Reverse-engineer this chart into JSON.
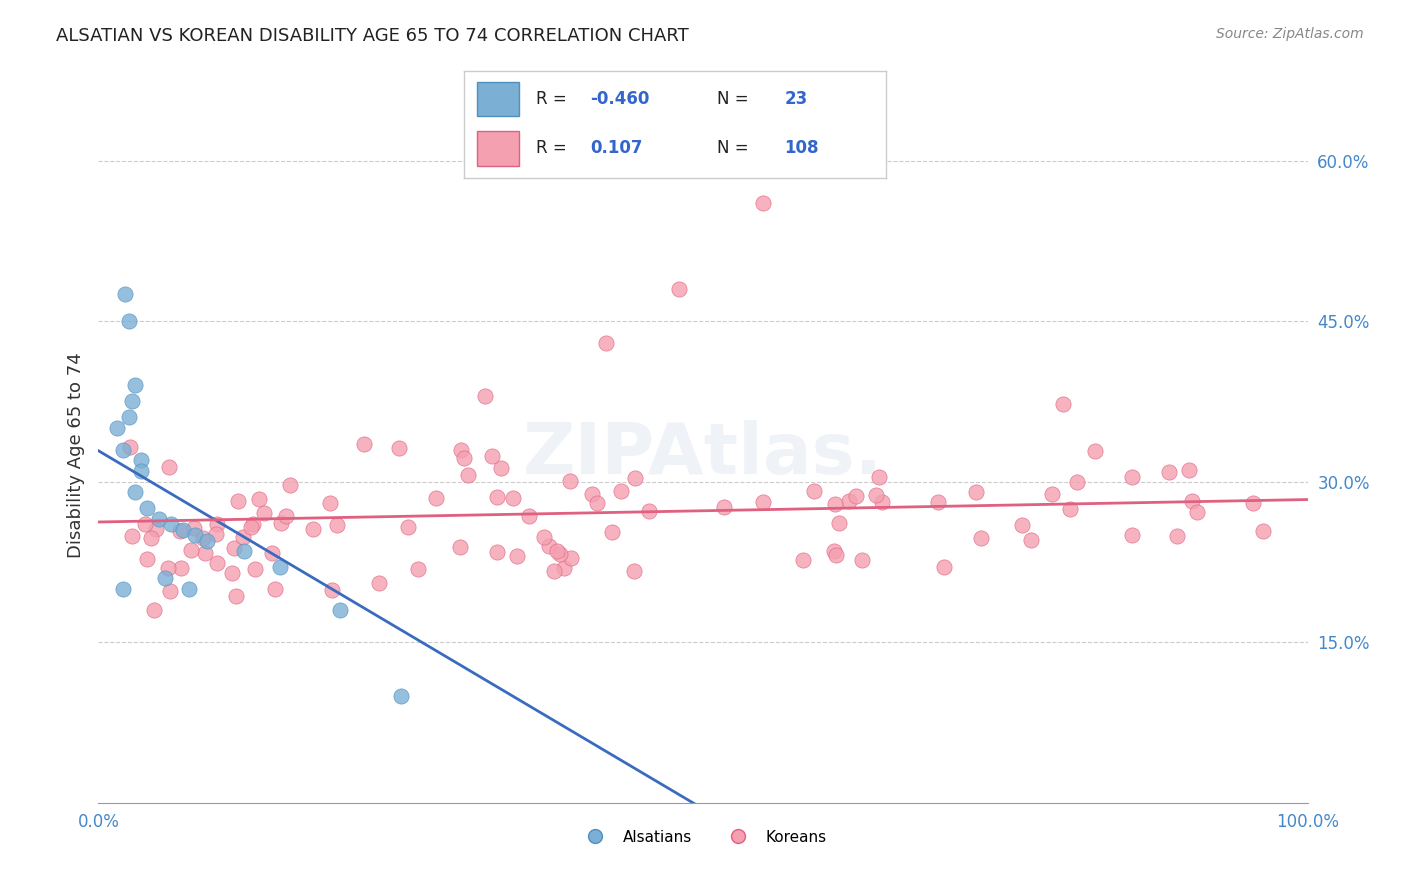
{
  "title": "ALSATIAN VS KOREAN DISABILITY AGE 65 TO 74 CORRELATION CHART",
  "source": "Source: ZipAtlas.com",
  "ylabel_label": "Disability Age 65 to 74",
  "xlim": [
    0.0,
    100.0
  ],
  "ylim": [
    0.0,
    65.0
  ],
  "alsatian_color": "#7bafd4",
  "korean_color": "#f4a0b0",
  "alsatian_R": -0.46,
  "alsatian_N": 23,
  "korean_R": 0.107,
  "korean_N": 108,
  "trend_alsatian_color": "#3a6bbf",
  "trend_korean_color": "#e06080",
  "legend_label_alsatian": "Alsatians",
  "legend_label_korean": "Koreans",
  "background_color": "#ffffff",
  "grid_color": "#cccccc"
}
